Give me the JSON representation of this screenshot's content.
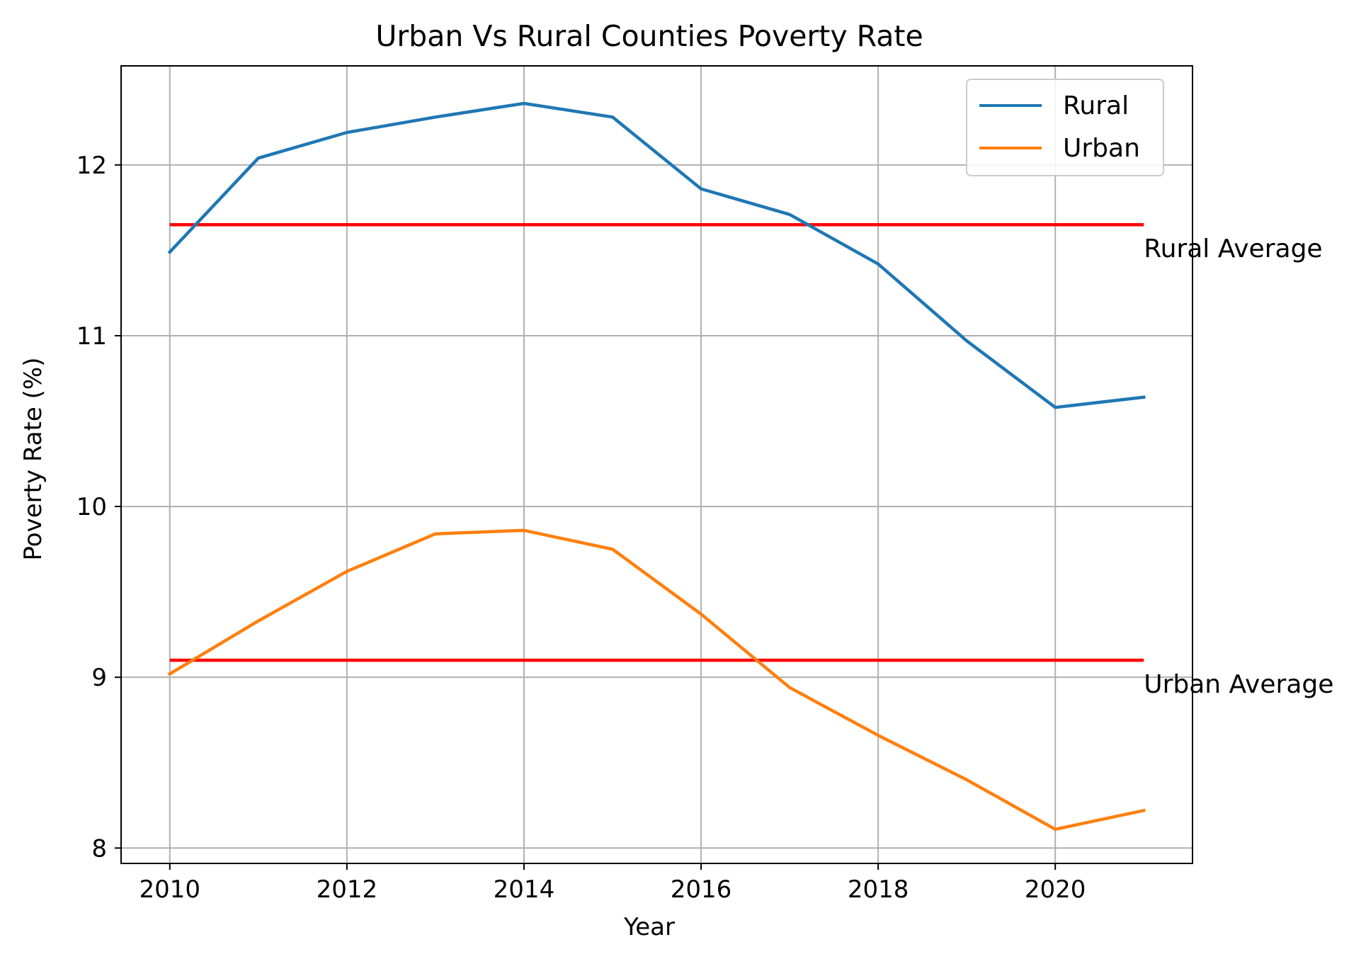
{
  "chart_data": {
    "type": "line",
    "title": "Urban Vs Rural Counties Poverty Rate",
    "xlabel": "Year",
    "ylabel": "Poverty Rate (%)",
    "x": [
      2010,
      2011,
      2012,
      2013,
      2014,
      2015,
      2016,
      2017,
      2018,
      2019,
      2020,
      2021
    ],
    "series": [
      {
        "name": "Rural",
        "color": "#1f77b4",
        "values": [
          11.49,
          12.04,
          12.19,
          12.28,
          12.36,
          12.28,
          11.86,
          11.71,
          11.42,
          10.97,
          10.58,
          10.64
        ]
      },
      {
        "name": "Urban",
        "color": "#ff7f0e",
        "values": [
          9.02,
          9.33,
          9.62,
          9.84,
          9.86,
          9.75,
          9.37,
          8.94,
          8.66,
          8.4,
          8.11,
          8.22
        ]
      }
    ],
    "reference_lines": [
      {
        "label": "Rural Average",
        "value": 11.65,
        "color": "#ff0000"
      },
      {
        "label": "Urban Average",
        "value": 9.1,
        "color": "#ff0000"
      }
    ],
    "xlim": [
      2009.45,
      2021.55
    ],
    "ylim": [
      7.91,
      12.58
    ],
    "xticks": [
      2010,
      2012,
      2014,
      2016,
      2018,
      2020
    ],
    "yticks": [
      8,
      9,
      10,
      11,
      12
    ],
    "grid": true,
    "legend_position": "top-right"
  }
}
